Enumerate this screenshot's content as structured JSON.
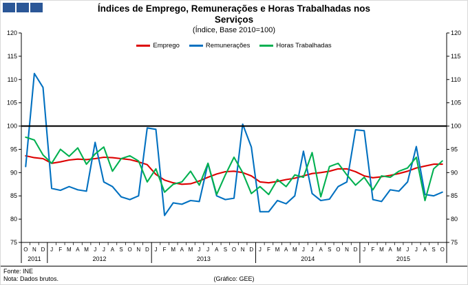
{
  "logo": {
    "color": "#2b5797",
    "square_count": 3
  },
  "footer": {
    "fonte": "Fonte: INE",
    "nota": "Nota: Dados brutos.",
    "grafico": "(Gráfico: GEE)"
  },
  "chart_data": {
    "type": "line",
    "title": "Índices de Emprego, Remunerações e Horas Trabalhadas nos Serviços",
    "subtitle": "(Índice, Base 2010=100)",
    "ylim": [
      75,
      120
    ],
    "ytick_step": 5,
    "reference_line": 100,
    "grid": false,
    "legend_position": "top",
    "month_labels": [
      "O",
      "N",
      "D",
      "J",
      "F",
      "M",
      "A",
      "M",
      "J",
      "J",
      "A",
      "S",
      "O",
      "N",
      "D",
      "J",
      "F",
      "M",
      "A",
      "M",
      "J",
      "J",
      "A",
      "S",
      "O",
      "N",
      "D",
      "J",
      "F",
      "M",
      "A",
      "M",
      "J",
      "J",
      "A",
      "S",
      "O",
      "N",
      "D",
      "J",
      "F",
      "M",
      "A",
      "M",
      "J",
      "J",
      "A",
      "S",
      "O"
    ],
    "year_groups": [
      {
        "label": "2011",
        "count": 3
      },
      {
        "label": "2012",
        "count": 12
      },
      {
        "label": "2013",
        "count": 12
      },
      {
        "label": "2014",
        "count": 12
      },
      {
        "label": "2015",
        "count": 10
      }
    ],
    "series": [
      {
        "name": "Emprego",
        "color": "#dd0000",
        "values": [
          93.6,
          93.2,
          93.0,
          92.0,
          92.3,
          92.7,
          92.9,
          92.8,
          93.0,
          93.3,
          93.2,
          93.0,
          92.8,
          92.3,
          91.7,
          89.6,
          88.4,
          87.8,
          87.5,
          87.6,
          88.2,
          89.0,
          89.7,
          90.2,
          90.3,
          90.0,
          89.3,
          88.0,
          87.8,
          88.1,
          88.5,
          88.8,
          89.3,
          89.8,
          90.0,
          90.3,
          90.8,
          90.8,
          90.2,
          89.3,
          88.9,
          89.1,
          89.4,
          89.8,
          90.3,
          91.0,
          91.4,
          91.8,
          91.8
        ]
      },
      {
        "name": "Remunerações",
        "color": "#0070c0",
        "values": [
          91.3,
          111.3,
          108.3,
          86.6,
          86.2,
          87.0,
          86.3,
          86.0,
          96.5,
          88.0,
          87.0,
          84.8,
          84.2,
          85.0,
          99.6,
          99.3,
          80.8,
          83.5,
          83.2,
          84.0,
          83.8,
          92.0,
          85.0,
          84.2,
          84.5,
          100.4,
          95.5,
          81.6,
          81.6,
          84.0,
          83.3,
          85.0,
          94.6,
          85.5,
          84.0,
          84.3,
          87.0,
          88.0,
          99.2,
          99.0,
          84.2,
          83.8,
          86.3,
          86.0,
          88.0,
          95.6,
          85.3,
          85.0,
          85.8
        ]
      },
      {
        "name": "Horas Trabalhadas",
        "color": "#00b050",
        "values": [
          97.6,
          97.0,
          93.8,
          92.0,
          95.0,
          93.5,
          95.3,
          91.8,
          94.0,
          95.5,
          90.3,
          93.0,
          93.6,
          92.5,
          88.0,
          90.8,
          85.8,
          87.5,
          88.0,
          90.3,
          87.3,
          92.0,
          85.3,
          89.5,
          93.3,
          90.0,
          85.5,
          87.0,
          85.3,
          88.5,
          87.0,
          89.5,
          89.0,
          94.3,
          84.8,
          91.3,
          92.0,
          89.5,
          87.3,
          89.0,
          86.3,
          89.3,
          89.0,
          90.3,
          91.0,
          93.3,
          84.0,
          90.8,
          92.5
        ]
      }
    ]
  }
}
